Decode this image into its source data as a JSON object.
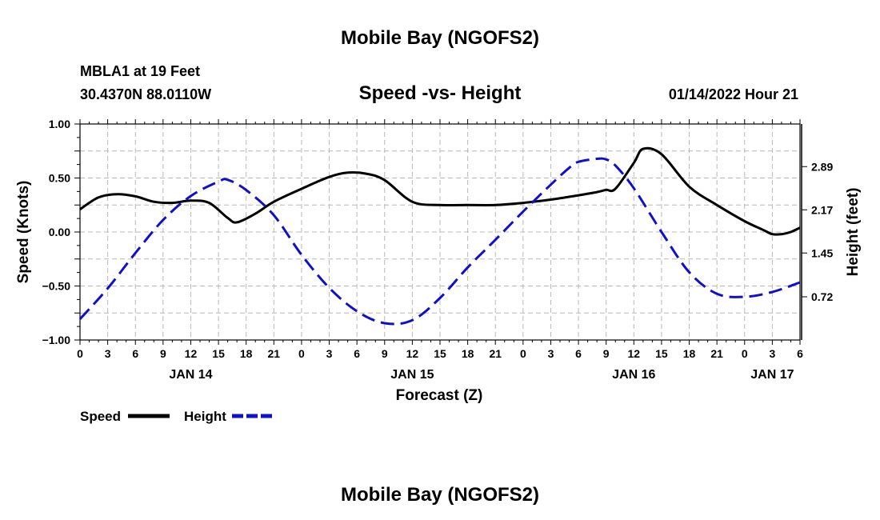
{
  "page": {
    "title_top": "Mobile Bay (NGOFS2)",
    "title_bottom": "Mobile Bay (NGOFS2)"
  },
  "chart_data": {
    "type": "line",
    "title": "Speed -vs- Height",
    "station": "MBLA1 at 19 Feet",
    "coords": "30.4370N  88.0110W",
    "datetime": "01/14/2022 Hour 21",
    "xlabel": "Forecast (Z)",
    "ylabel_left": "Speed (Knots)",
    "ylabel_right": "Height (feet)",
    "ylim_left": [
      -1.0,
      1.0
    ],
    "ylim_right": [
      0.0,
      3.6
    ],
    "xlim_hours": [
      0,
      78
    ],
    "grid": true,
    "left_ticks": [
      "1.00",
      "0.50",
      "0.00",
      "−0.50",
      "−1.00"
    ],
    "left_tick_values": [
      1.0,
      0.5,
      0.0,
      -0.5,
      -1.0
    ],
    "right_ticks": [
      "2.89",
      "2.17",
      "1.45",
      "0.72"
    ],
    "right_tick_values": [
      2.89,
      2.17,
      1.45,
      0.72
    ],
    "x_tick_labels": [
      "0",
      "3",
      "6",
      "9",
      "12",
      "15",
      "18",
      "21",
      "0",
      "3",
      "6",
      "9",
      "12",
      "15",
      "18",
      "21",
      "0",
      "3",
      "6",
      "9",
      "12",
      "15",
      "18",
      "21",
      "0",
      "3",
      "6"
    ],
    "day_labels": [
      {
        "label": "JAN 14",
        "hour": 12
      },
      {
        "label": "JAN 15",
        "hour": 36
      },
      {
        "label": "JAN 16",
        "hour": 60
      },
      {
        "label": "JAN 17",
        "hour": 75
      }
    ],
    "legend": [
      {
        "name": "Speed",
        "color": "#000000",
        "style": "solid"
      },
      {
        "name": "Height",
        "color": "#1010cc",
        "style": "dashed"
      }
    ],
    "series": [
      {
        "name": "Speed",
        "axis": "left",
        "color": "#000000",
        "style": "solid",
        "x": [
          0,
          2,
          4,
          6,
          8,
          10,
          12,
          14,
          16,
          17,
          19,
          21,
          24,
          27,
          29,
          31,
          33,
          36,
          39,
          42,
          45,
          48,
          51,
          54,
          56,
          57,
          58,
          60,
          61,
          63,
          66,
          69,
          72,
          74,
          75,
          76,
          77,
          78
        ],
        "y": [
          0.21,
          0.32,
          0.35,
          0.33,
          0.28,
          0.27,
          0.29,
          0.27,
          0.13,
          0.09,
          0.17,
          0.28,
          0.4,
          0.51,
          0.55,
          0.54,
          0.48,
          0.28,
          0.25,
          0.25,
          0.25,
          0.27,
          0.3,
          0.34,
          0.37,
          0.39,
          0.4,
          0.64,
          0.77,
          0.72,
          0.42,
          0.25,
          0.1,
          0.02,
          -0.02,
          -0.02,
          0.0,
          0.04
        ]
      },
      {
        "name": "Height",
        "axis": "right",
        "color": "#1010cc",
        "style": "dashed",
        "x": [
          0,
          3,
          6,
          9,
          12,
          15,
          16,
          18,
          21,
          24,
          27,
          30,
          33,
          36,
          39,
          42,
          45,
          48,
          51,
          53,
          54,
          56,
          57,
          58,
          60,
          63,
          66,
          69,
          72,
          75,
          78
        ],
        "y": [
          0.35,
          0.86,
          1.45,
          2.0,
          2.4,
          2.64,
          2.67,
          2.5,
          2.08,
          1.42,
          0.87,
          0.48,
          0.28,
          0.33,
          0.7,
          1.21,
          1.67,
          2.14,
          2.59,
          2.87,
          2.97,
          3.02,
          3.01,
          2.91,
          2.53,
          1.8,
          1.13,
          0.77,
          0.72,
          0.8,
          0.96
        ]
      }
    ]
  }
}
